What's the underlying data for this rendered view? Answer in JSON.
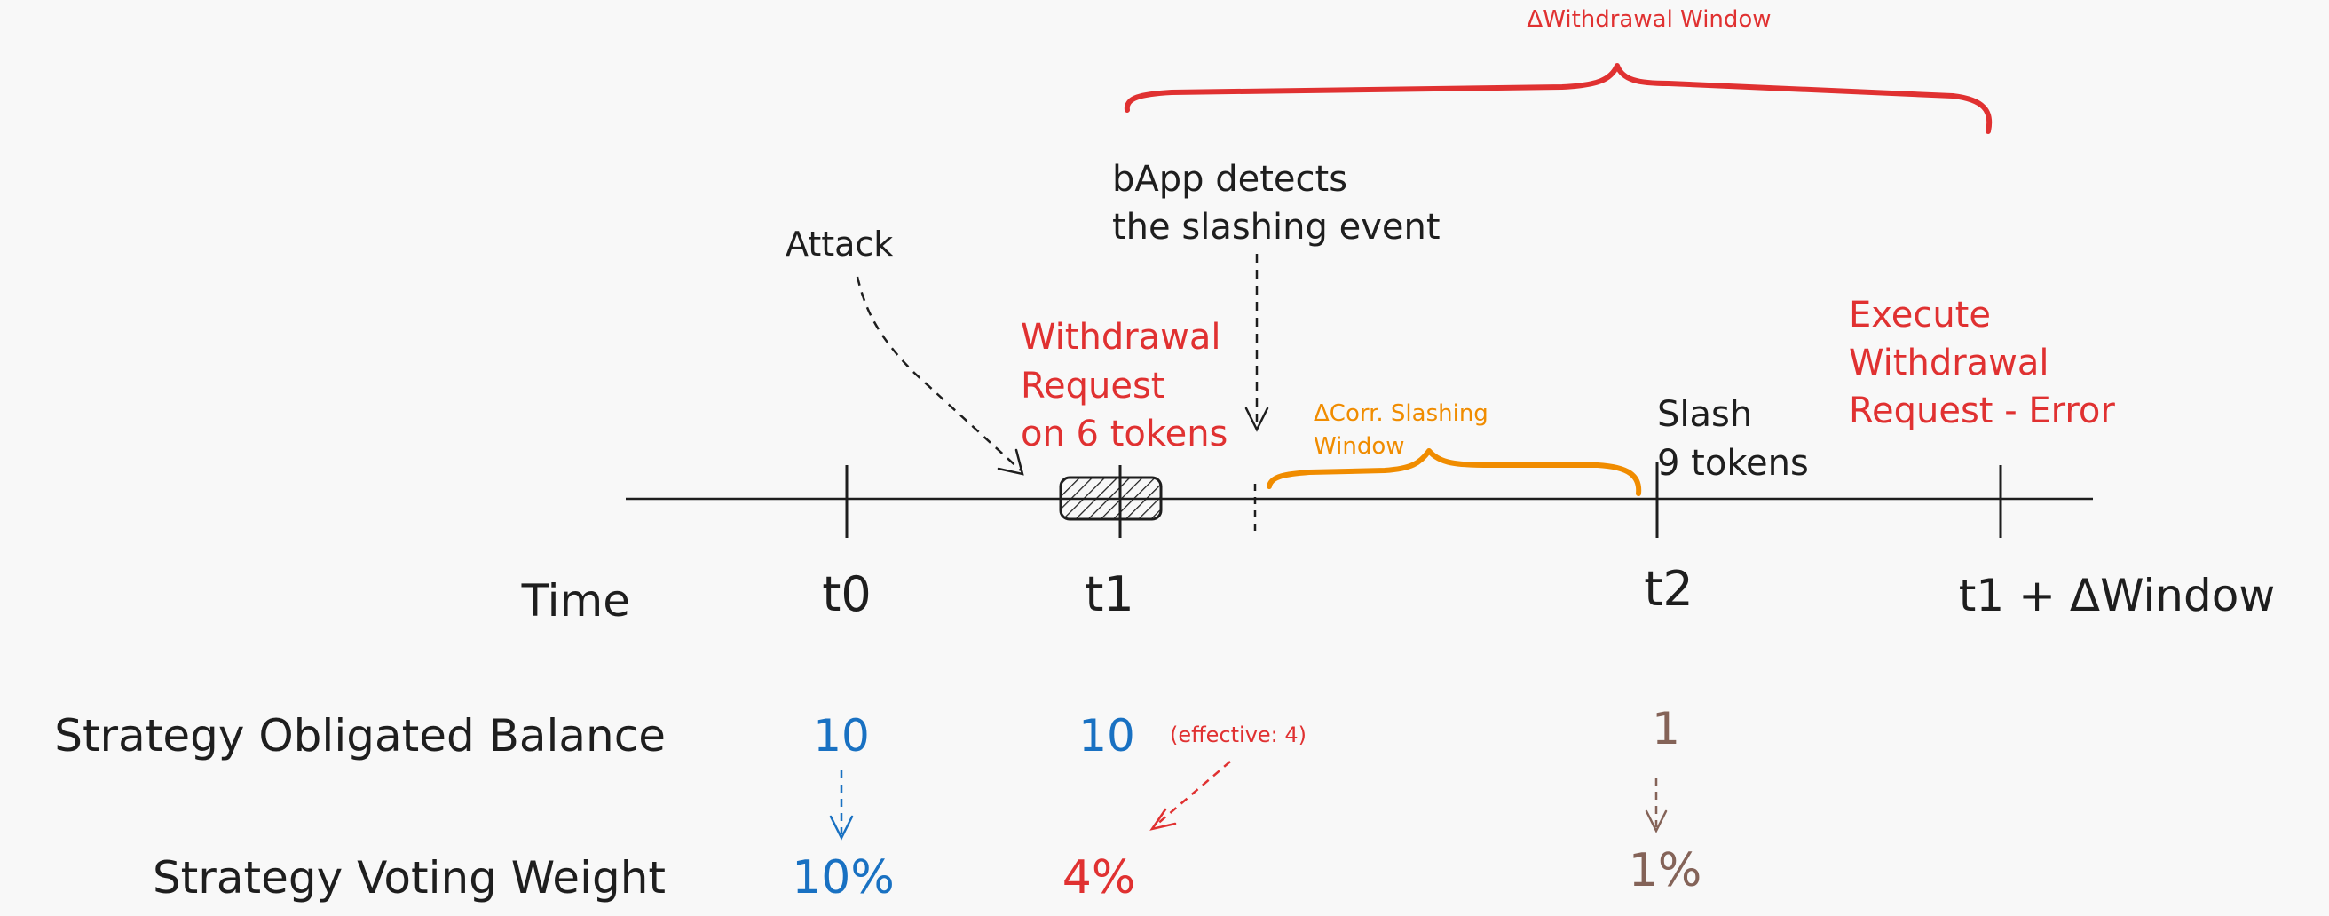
{
  "window_label": "ΔWithdrawal Window",
  "corr_window_label": [
    "ΔCorr. Slashing",
    "Window"
  ],
  "events": {
    "attack": "Attack",
    "bapp_detects": [
      "bApp detects",
      "the slashing event"
    ],
    "withdrawal_request": [
      "Withdrawal",
      "Request",
      "on 6 tokens"
    ],
    "slash": [
      "Slash",
      "9 tokens"
    ],
    "execute": [
      "Execute",
      "Withdrawal",
      "Request - Error"
    ]
  },
  "row_labels": {
    "time": "Time",
    "balance": "Strategy Obligated Balance",
    "voting": "Strategy Voting Weight"
  },
  "ticks": [
    "t0",
    "t1",
    "t2",
    "t1 + ΔWindow"
  ],
  "balances": [
    "10",
    "10",
    "1"
  ],
  "effective_note": "(effective: 4)",
  "weights": [
    "10%",
    "4%",
    "1%"
  ],
  "colors": {
    "ink": "#1e1e1e",
    "red": "#e03131",
    "orange": "#f08c00",
    "blue": "#1971c2",
    "brown": "#846358",
    "background": "#f8f8f8"
  }
}
